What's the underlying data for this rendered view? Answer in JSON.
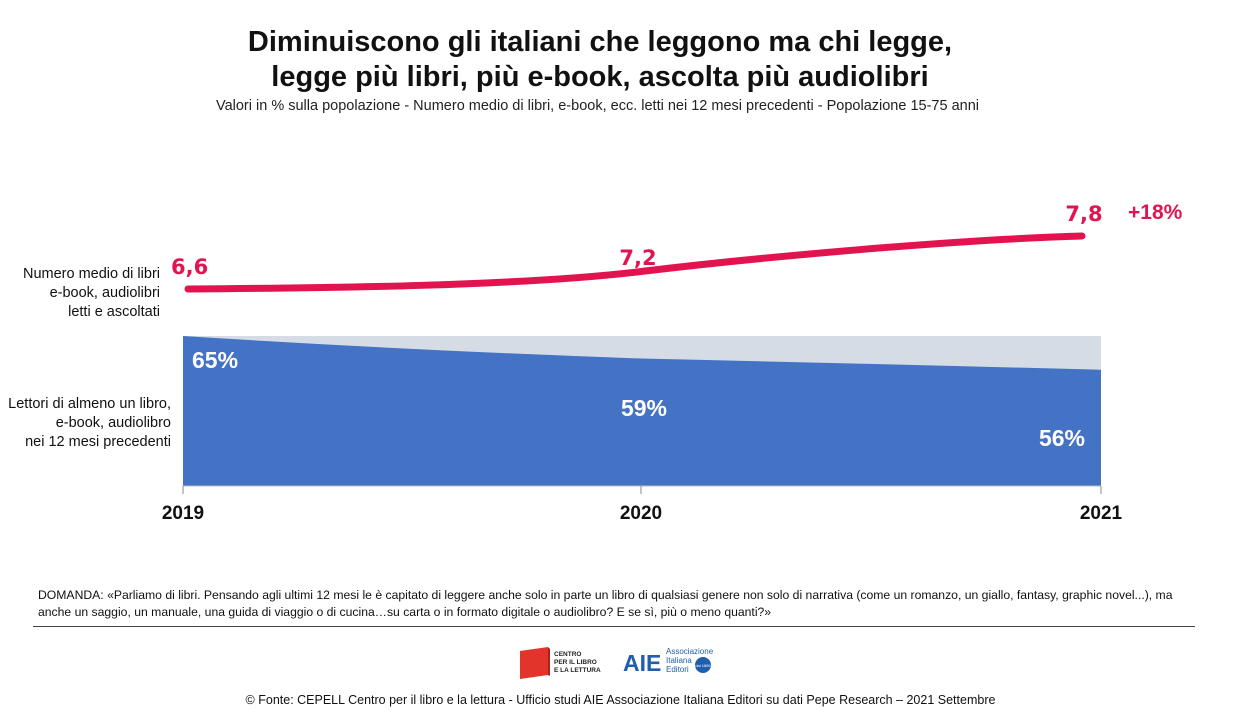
{
  "title_line1": "Diminuiscono gli italiani che leggono ma chi legge,",
  "title_line2": "legge più libri, più e-book, ascolta più audiolibri",
  "subtitle": "Valori in % sulla popolazione - Numero medio di libri, e-book, ecc. letti nei 12 mesi precedenti - Popolazione 15-75 anni",
  "row_labels": {
    "average": [
      "Numero medio di libri",
      "e-book, audiolibri",
      "letti e ascoltati"
    ],
    "readers": [
      "Lettori di almeno un libro,",
      "e-book, audiolibro",
      "nei 12 mesi precedenti"
    ]
  },
  "chart_data": {
    "type": "line+area",
    "x": [
      "2019",
      "2020",
      "2021"
    ],
    "series": [
      {
        "name": "Numero medio di libri e-book, audiolibri letti e ascoltati",
        "type": "line",
        "values": [
          6.6,
          7.2,
          7.8
        ],
        "labels": [
          "6,6",
          "7,2",
          "7,8"
        ],
        "color": "#e2144f"
      },
      {
        "name": "Lettori di almeno un libro, e-book, audiolibro nei 12 mesi precedenti",
        "type": "area",
        "values": [
          65,
          59,
          56
        ],
        "labels": [
          "65%",
          "59%",
          "56%"
        ],
        "color": "#4472c4",
        "background_color": "#d6dce5"
      }
    ],
    "annotation": "+18%",
    "area_ylim": [
      0,
      100
    ]
  },
  "question": "DOMANDA: «Parliamo di libri. Pensando agli ultimi 12 mesi le è capitato di leggere anche solo in parte un libro di qualsiasi genere non solo di narrativa (come un romanzo, un giallo, fantasy, graphic novel...),  ma anche un saggio, un manuale, una guida di viaggio o di cucina…su carta o in formato digitale o audiolibro? E se sì, più o meno quanti?»",
  "logos": {
    "cepell_text": [
      "CENTRO",
      "PER IL LIBRO",
      "E LA LETTURA"
    ],
    "aie_short": "AIE",
    "aie_text": [
      "Associazione",
      "Italiana",
      "Editori"
    ],
    "aie_badge": "dal 1869"
  },
  "source": "© Fonte: CEPELL Centro per il libro e la lettura - Ufficio studi AIE Associazione Italiana Editori su dati Pepe Research – 2021 Settembre"
}
